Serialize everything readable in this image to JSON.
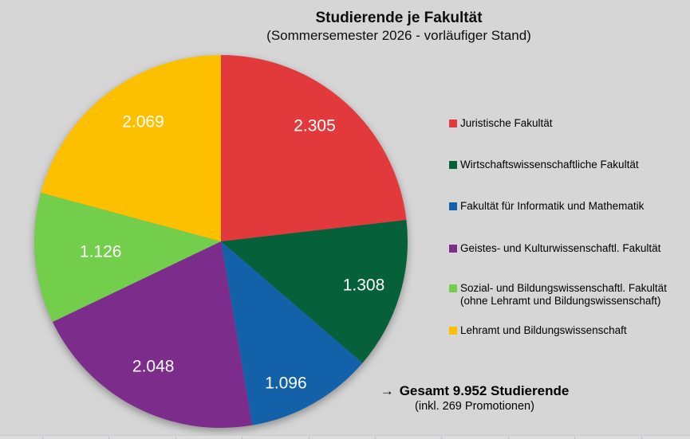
{
  "chart_data": {
    "type": "pie",
    "title": "Studierende je Fakultät",
    "subtitle": "(Sommersemester 2026 - vorläufiger Stand)",
    "legend_position": "right",
    "start_angle": "top, clockwise",
    "total": 9952,
    "series": [
      {
        "name": "Juristische Fakultät",
        "value": 2305,
        "label": "2.305",
        "color": "#E23A3C"
      },
      {
        "name": "Wirtschaftswissenschaftliche Fakultät",
        "value": 1308,
        "label": "1.308",
        "color": "#06613A"
      },
      {
        "name": "Fakultät für Informatik und Mathematik",
        "value": 1096,
        "label": "1.096",
        "color": "#1261A9"
      },
      {
        "name": "Geistes- und Kulturwissenschaftl. Fakultät",
        "value": 2048,
        "label": "2.048",
        "color": "#7C2D8B"
      },
      {
        "name": "Sozial- und Bildungswissenschaftl. Fakultät",
        "name_line2": "(ohne Lehramt und Bildungswissenschaft)",
        "value": 1126,
        "label": "1.126",
        "color": "#72CE4B"
      },
      {
        "name": "Lehramt und Bildungswissenschaft",
        "value": 2069,
        "label": "2.069",
        "color": "#FDC000"
      }
    ],
    "annotation": {
      "arrow": "→",
      "text": "Gesamt 9.952 Studierende",
      "subtext": "(inkl. 269 Promotionen)"
    }
  }
}
